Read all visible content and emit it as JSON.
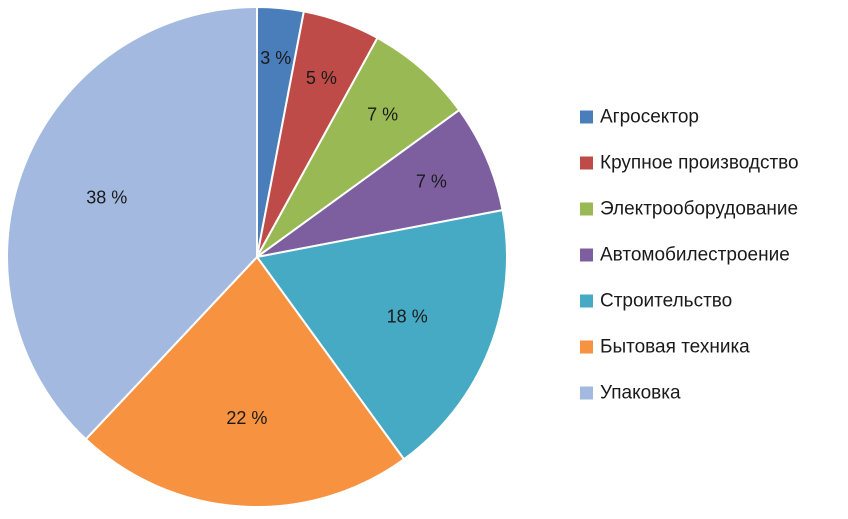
{
  "chart_data": {
    "type": "pie",
    "title": "",
    "slices": [
      {
        "label": "Агросектор",
        "value": 3,
        "display": "3 %",
        "color": "#4a7ebb"
      },
      {
        "label": "Крупное производство",
        "value": 5,
        "display": "5 %",
        "color": "#be4b48"
      },
      {
        "label": "Электрооборудование",
        "value": 7,
        "display": "7 %",
        "color": "#98b954"
      },
      {
        "label": "Автомобилестроение",
        "value": 7,
        "display": "7 %",
        "color": "#7d5fa0"
      },
      {
        "label": "Строительство",
        "value": 18,
        "display": "18 %",
        "color": "#46aac5"
      },
      {
        "label": "Бытовая техника",
        "value": 22,
        "display": "22 %",
        "color": "#f69240"
      },
      {
        "label": "Упаковка",
        "value": 38,
        "display": "38 %",
        "color": "#a3b9e0"
      }
    ],
    "start_angle": "12 o'clock",
    "direction": "clockwise",
    "legend_position": "right"
  }
}
